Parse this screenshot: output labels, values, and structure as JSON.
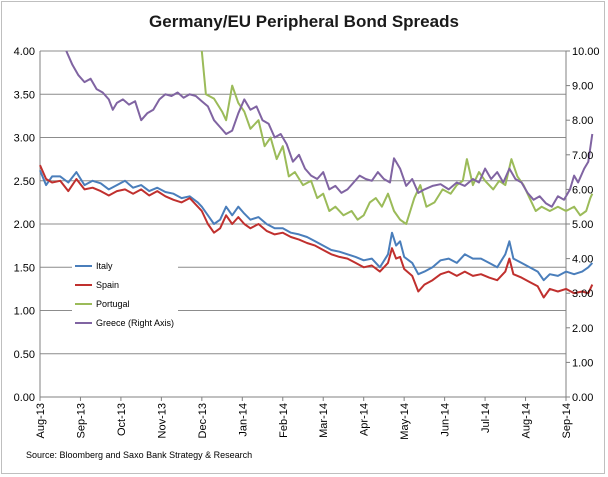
{
  "chart_data": {
    "type": "line",
    "title": "Germany/EU Peripheral Bond Spreads",
    "source": "Source: Bloomberg and Saxo Bank Strategy & Research",
    "x_labels": [
      "Aug-13",
      "Sep-13",
      "Oct-13",
      "Nov-13",
      "Dec-13",
      "Jan-14",
      "Feb-14",
      "Mar-14",
      "Apr-14",
      "May-14",
      "Jun-14",
      "Jul-14",
      "Aug-14",
      "Sep-14"
    ],
    "y_left": {
      "min": 0,
      "max": 4,
      "ticks": [
        "0.00",
        "0.50",
        "1.00",
        "1.50",
        "2.00",
        "2.50",
        "3.00",
        "3.50",
        "4.00"
      ]
    },
    "y_right": {
      "min": 0,
      "max": 10,
      "ticks": [
        "0.00",
        "1.00",
        "2.00",
        "3.00",
        "4.00",
        "5.00",
        "6.00",
        "7.00",
        "8.00",
        "9.00",
        "10.00"
      ]
    },
    "grid": true,
    "legend_position": "left",
    "series": [
      {
        "name": "Italy",
        "axis": "left",
        "color": "#4a7ebb",
        "points": [
          [
            0,
            2.62
          ],
          [
            0.15,
            2.45
          ],
          [
            0.3,
            2.55
          ],
          [
            0.5,
            2.55
          ],
          [
            0.7,
            2.48
          ],
          [
            0.9,
            2.6
          ],
          [
            1.1,
            2.45
          ],
          [
            1.3,
            2.5
          ],
          [
            1.5,
            2.47
          ],
          [
            1.7,
            2.4
          ],
          [
            1.9,
            2.45
          ],
          [
            2.1,
            2.5
          ],
          [
            2.3,
            2.42
          ],
          [
            2.5,
            2.45
          ],
          [
            2.7,
            2.38
          ],
          [
            2.9,
            2.42
          ],
          [
            3.1,
            2.37
          ],
          [
            3.3,
            2.35
          ],
          [
            3.5,
            2.3
          ],
          [
            3.7,
            2.32
          ],
          [
            3.9,
            2.25
          ],
          [
            4.0,
            2.2
          ],
          [
            4.15,
            2.1
          ],
          [
            4.3,
            2.0
          ],
          [
            4.45,
            2.05
          ],
          [
            4.6,
            2.2
          ],
          [
            4.75,
            2.1
          ],
          [
            4.9,
            2.2
          ],
          [
            5.05,
            2.12
          ],
          [
            5.2,
            2.05
          ],
          [
            5.4,
            2.08
          ],
          [
            5.6,
            2.0
          ],
          [
            5.8,
            1.95
          ],
          [
            6.0,
            1.95
          ],
          [
            6.2,
            1.9
          ],
          [
            6.4,
            1.88
          ],
          [
            6.6,
            1.85
          ],
          [
            6.8,
            1.8
          ],
          [
            7.0,
            1.75
          ],
          [
            7.2,
            1.7
          ],
          [
            7.4,
            1.68
          ],
          [
            7.6,
            1.65
          ],
          [
            7.8,
            1.62
          ],
          [
            8.0,
            1.58
          ],
          [
            8.2,
            1.6
          ],
          [
            8.4,
            1.5
          ],
          [
            8.6,
            1.65
          ],
          [
            8.7,
            1.9
          ],
          [
            8.8,
            1.75
          ],
          [
            8.9,
            1.8
          ],
          [
            9.0,
            1.62
          ],
          [
            9.2,
            1.55
          ],
          [
            9.35,
            1.42
          ],
          [
            9.5,
            1.45
          ],
          [
            9.7,
            1.5
          ],
          [
            9.9,
            1.58
          ],
          [
            10.1,
            1.6
          ],
          [
            10.3,
            1.55
          ],
          [
            10.5,
            1.65
          ],
          [
            10.7,
            1.6
          ],
          [
            10.9,
            1.6
          ],
          [
            11.1,
            1.55
          ],
          [
            11.3,
            1.5
          ],
          [
            11.5,
            1.65
          ],
          [
            11.6,
            1.8
          ],
          [
            11.7,
            1.6
          ],
          [
            11.9,
            1.55
          ],
          [
            12.1,
            1.5
          ],
          [
            12.3,
            1.45
          ],
          [
            12.45,
            1.35
          ],
          [
            12.6,
            1.42
          ],
          [
            12.8,
            1.4
          ],
          [
            13.0,
            1.45
          ],
          [
            13.2,
            1.42
          ],
          [
            13.4,
            1.45
          ],
          [
            13.55,
            1.5
          ],
          [
            13.65,
            1.55
          ]
        ]
      },
      {
        "name": "Spain",
        "axis": "left",
        "color": "#c0302e",
        "points": [
          [
            0,
            2.68
          ],
          [
            0.15,
            2.52
          ],
          [
            0.3,
            2.48
          ],
          [
            0.5,
            2.5
          ],
          [
            0.7,
            2.38
          ],
          [
            0.9,
            2.52
          ],
          [
            1.1,
            2.4
          ],
          [
            1.3,
            2.42
          ],
          [
            1.5,
            2.38
          ],
          [
            1.7,
            2.33
          ],
          [
            1.9,
            2.38
          ],
          [
            2.1,
            2.4
          ],
          [
            2.3,
            2.35
          ],
          [
            2.5,
            2.4
          ],
          [
            2.7,
            2.33
          ],
          [
            2.9,
            2.38
          ],
          [
            3.1,
            2.32
          ],
          [
            3.3,
            2.28
          ],
          [
            3.5,
            2.25
          ],
          [
            3.7,
            2.3
          ],
          [
            3.9,
            2.2
          ],
          [
            4.0,
            2.15
          ],
          [
            4.15,
            2.0
          ],
          [
            4.3,
            1.9
          ],
          [
            4.45,
            1.95
          ],
          [
            4.6,
            2.1
          ],
          [
            4.75,
            2.0
          ],
          [
            4.9,
            2.08
          ],
          [
            5.05,
            2.0
          ],
          [
            5.2,
            1.95
          ],
          [
            5.4,
            2.0
          ],
          [
            5.6,
            1.92
          ],
          [
            5.8,
            1.88
          ],
          [
            6.0,
            1.9
          ],
          [
            6.2,
            1.85
          ],
          [
            6.4,
            1.82
          ],
          [
            6.6,
            1.78
          ],
          [
            6.8,
            1.75
          ],
          [
            7.0,
            1.7
          ],
          [
            7.2,
            1.65
          ],
          [
            7.4,
            1.62
          ],
          [
            7.6,
            1.6
          ],
          [
            7.8,
            1.55
          ],
          [
            8.0,
            1.5
          ],
          [
            8.2,
            1.52
          ],
          [
            8.4,
            1.45
          ],
          [
            8.6,
            1.55
          ],
          [
            8.7,
            1.72
          ],
          [
            8.8,
            1.6
          ],
          [
            8.9,
            1.62
          ],
          [
            9.0,
            1.48
          ],
          [
            9.2,
            1.4
          ],
          [
            9.35,
            1.22
          ],
          [
            9.5,
            1.3
          ],
          [
            9.7,
            1.35
          ],
          [
            9.9,
            1.42
          ],
          [
            10.1,
            1.45
          ],
          [
            10.3,
            1.4
          ],
          [
            10.5,
            1.45
          ],
          [
            10.7,
            1.4
          ],
          [
            10.9,
            1.42
          ],
          [
            11.1,
            1.38
          ],
          [
            11.3,
            1.35
          ],
          [
            11.5,
            1.45
          ],
          [
            11.6,
            1.6
          ],
          [
            11.7,
            1.42
          ],
          [
            11.9,
            1.38
          ],
          [
            12.1,
            1.33
          ],
          [
            12.3,
            1.28
          ],
          [
            12.45,
            1.15
          ],
          [
            12.6,
            1.25
          ],
          [
            12.8,
            1.22
          ],
          [
            13.0,
            1.25
          ],
          [
            13.2,
            1.2
          ],
          [
            13.4,
            1.22
          ],
          [
            13.55,
            1.2
          ],
          [
            13.65,
            1.3
          ]
        ]
      },
      {
        "name": "Portugal",
        "axis": "left",
        "color": "#9bbb59",
        "points": [
          [
            4.0,
            4.0
          ],
          [
            4.1,
            3.5
          ],
          [
            4.3,
            3.45
          ],
          [
            4.5,
            3.3
          ],
          [
            4.6,
            3.2
          ],
          [
            4.75,
            3.6
          ],
          [
            4.9,
            3.4
          ],
          [
            5.05,
            3.3
          ],
          [
            5.2,
            3.1
          ],
          [
            5.4,
            3.2
          ],
          [
            5.55,
            2.9
          ],
          [
            5.7,
            3.0
          ],
          [
            5.85,
            2.75
          ],
          [
            6.0,
            2.9
          ],
          [
            6.15,
            2.55
          ],
          [
            6.3,
            2.6
          ],
          [
            6.5,
            2.45
          ],
          [
            6.7,
            2.5
          ],
          [
            6.85,
            2.3
          ],
          [
            7.0,
            2.35
          ],
          [
            7.15,
            2.15
          ],
          [
            7.3,
            2.2
          ],
          [
            7.5,
            2.1
          ],
          [
            7.7,
            2.15
          ],
          [
            7.85,
            2.05
          ],
          [
            8.0,
            2.1
          ],
          [
            8.15,
            2.25
          ],
          [
            8.3,
            2.3
          ],
          [
            8.45,
            2.2
          ],
          [
            8.6,
            2.35
          ],
          [
            8.75,
            2.15
          ],
          [
            8.9,
            2.05
          ],
          [
            9.05,
            2.0
          ],
          [
            9.25,
            2.3
          ],
          [
            9.4,
            2.45
          ],
          [
            9.55,
            2.2
          ],
          [
            9.75,
            2.25
          ],
          [
            9.95,
            2.4
          ],
          [
            10.15,
            2.35
          ],
          [
            10.3,
            2.45
          ],
          [
            10.45,
            2.5
          ],
          [
            10.55,
            2.75
          ],
          [
            10.7,
            2.45
          ],
          [
            10.85,
            2.6
          ],
          [
            11.0,
            2.5
          ],
          [
            11.2,
            2.4
          ],
          [
            11.35,
            2.5
          ],
          [
            11.5,
            2.45
          ],
          [
            11.65,
            2.75
          ],
          [
            11.8,
            2.55
          ],
          [
            11.95,
            2.45
          ],
          [
            12.1,
            2.3
          ],
          [
            12.25,
            2.15
          ],
          [
            12.4,
            2.2
          ],
          [
            12.6,
            2.15
          ],
          [
            12.8,
            2.2
          ],
          [
            13.0,
            2.15
          ],
          [
            13.2,
            2.2
          ],
          [
            13.35,
            2.1
          ],
          [
            13.5,
            2.15
          ],
          [
            13.6,
            2.3
          ],
          [
            13.65,
            2.35
          ]
        ]
      },
      {
        "name": "Greece (Right Axis)",
        "axis": "right",
        "color": "#8064a2",
        "points": [
          [
            0.65,
            10.0
          ],
          [
            0.8,
            9.6
          ],
          [
            0.95,
            9.3
          ],
          [
            1.1,
            9.1
          ],
          [
            1.25,
            9.2
          ],
          [
            1.4,
            8.9
          ],
          [
            1.55,
            8.8
          ],
          [
            1.7,
            8.6
          ],
          [
            1.8,
            8.3
          ],
          [
            1.9,
            8.5
          ],
          [
            2.05,
            8.6
          ],
          [
            2.2,
            8.45
          ],
          [
            2.35,
            8.55
          ],
          [
            2.5,
            8.0
          ],
          [
            2.65,
            8.2
          ],
          [
            2.8,
            8.3
          ],
          [
            2.95,
            8.6
          ],
          [
            3.1,
            8.75
          ],
          [
            3.25,
            8.7
          ],
          [
            3.4,
            8.8
          ],
          [
            3.55,
            8.65
          ],
          [
            3.7,
            8.75
          ],
          [
            3.85,
            8.7
          ],
          [
            4.0,
            8.55
          ],
          [
            4.15,
            8.4
          ],
          [
            4.3,
            8.0
          ],
          [
            4.45,
            7.8
          ],
          [
            4.6,
            7.6
          ],
          [
            4.75,
            7.7
          ],
          [
            4.9,
            8.2
          ],
          [
            5.05,
            8.6
          ],
          [
            5.2,
            8.3
          ],
          [
            5.35,
            8.4
          ],
          [
            5.5,
            8.0
          ],
          [
            5.65,
            7.9
          ],
          [
            5.8,
            7.5
          ],
          [
            5.95,
            7.6
          ],
          [
            6.1,
            7.3
          ],
          [
            6.25,
            6.8
          ],
          [
            6.4,
            7.0
          ],
          [
            6.55,
            6.6
          ],
          [
            6.7,
            6.4
          ],
          [
            6.85,
            6.3
          ],
          [
            7.0,
            6.5
          ],
          [
            7.15,
            6.0
          ],
          [
            7.3,
            6.1
          ],
          [
            7.45,
            5.9
          ],
          [
            7.6,
            6.0
          ],
          [
            7.75,
            6.2
          ],
          [
            7.9,
            6.4
          ],
          [
            8.05,
            6.3
          ],
          [
            8.2,
            6.25
          ],
          [
            8.35,
            6.5
          ],
          [
            8.5,
            6.3
          ],
          [
            8.65,
            6.2
          ],
          [
            8.75,
            6.9
          ],
          [
            8.9,
            6.6
          ],
          [
            9.05,
            6.1
          ],
          [
            9.2,
            6.3
          ],
          [
            9.35,
            5.9
          ],
          [
            9.5,
            6.0
          ],
          [
            9.7,
            6.1
          ],
          [
            9.9,
            6.15
          ],
          [
            10.1,
            6.0
          ],
          [
            10.3,
            6.2
          ],
          [
            10.5,
            6.1
          ],
          [
            10.7,
            6.3
          ],
          [
            10.85,
            6.2
          ],
          [
            11.0,
            6.6
          ],
          [
            11.15,
            6.3
          ],
          [
            11.3,
            6.5
          ],
          [
            11.45,
            6.2
          ],
          [
            11.6,
            6.6
          ],
          [
            11.75,
            6.3
          ],
          [
            11.9,
            6.2
          ],
          [
            12.05,
            5.9
          ],
          [
            12.2,
            5.7
          ],
          [
            12.35,
            5.8
          ],
          [
            12.5,
            5.6
          ],
          [
            12.65,
            5.5
          ],
          [
            12.8,
            5.8
          ],
          [
            12.95,
            5.7
          ],
          [
            13.1,
            6.0
          ],
          [
            13.2,
            6.4
          ],
          [
            13.3,
            6.2
          ],
          [
            13.45,
            6.6
          ],
          [
            13.55,
            6.8
          ],
          [
            13.65,
            7.6
          ]
        ]
      }
    ]
  }
}
